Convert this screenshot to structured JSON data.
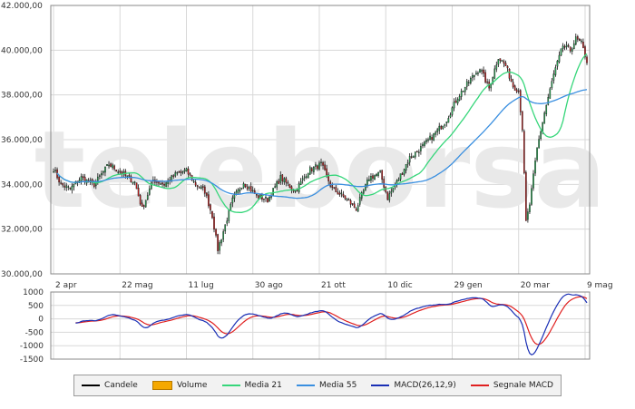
{
  "chart_data": [
    {
      "type": "candlestick",
      "title": "",
      "watermark": "teleborsa",
      "x_tick_labels": [
        "2 apr",
        "22 mag",
        "11 lug",
        "30 ago",
        "21 ott",
        "10 dic",
        "29 gen",
        "20 mar",
        "9 mag"
      ],
      "y_tick_labels": [
        "42.000,00",
        "40.000,00",
        "38.000,00",
        "36.000,00",
        "34.000,00",
        "32.000,00",
        "30.000,00"
      ],
      "ylim": [
        30000,
        42000
      ],
      "grid": true,
      "trading_days": 290,
      "x_tick_day_index": [
        0,
        36,
        72,
        108,
        144,
        180,
        216,
        252,
        288
      ],
      "price_anchors": [
        [
          0,
          34700
        ],
        [
          4,
          34000
        ],
        [
          9,
          33800
        ],
        [
          15,
          34300
        ],
        [
          22,
          34000
        ],
        [
          30,
          34900
        ],
        [
          37,
          34500
        ],
        [
          44,
          34100
        ],
        [
          48,
          32900
        ],
        [
          54,
          34200
        ],
        [
          60,
          34000
        ],
        [
          67,
          34500
        ],
        [
          72,
          34600
        ],
        [
          77,
          34000
        ],
        [
          82,
          33700
        ],
        [
          86,
          32600
        ],
        [
          89,
          31100
        ],
        [
          92,
          31900
        ],
        [
          97,
          33300
        ],
        [
          103,
          34100
        ],
        [
          110,
          33500
        ],
        [
          116,
          33300
        ],
        [
          123,
          34300
        ],
        [
          131,
          33700
        ],
        [
          138,
          34600
        ],
        [
          145,
          34900
        ],
        [
          151,
          33800
        ],
        [
          158,
          33400
        ],
        [
          164,
          32900
        ],
        [
          171,
          34300
        ],
        [
          177,
          34500
        ],
        [
          181,
          33400
        ],
        [
          186,
          34100
        ],
        [
          193,
          35200
        ],
        [
          200,
          35700
        ],
        [
          207,
          36300
        ],
        [
          213,
          36900
        ],
        [
          219,
          37900
        ],
        [
          226,
          38700
        ],
        [
          231,
          39200
        ],
        [
          236,
          38300
        ],
        [
          241,
          39700
        ],
        [
          245,
          39300
        ],
        [
          249,
          38400
        ],
        [
          252,
          38200
        ],
        [
          254,
          36500
        ],
        [
          256,
          32300
        ],
        [
          258,
          33100
        ],
        [
          262,
          35600
        ],
        [
          266,
          37200
        ],
        [
          271,
          38900
        ],
        [
          276,
          40200
        ],
        [
          280,
          40000
        ],
        [
          283,
          40500
        ],
        [
          286,
          40300
        ],
        [
          289,
          39500
        ]
      ],
      "series": [
        {
          "name": "Candele",
          "color": "#000000"
        },
        {
          "name": "Volume",
          "color": "#f5a800"
        },
        {
          "name": "Media 21",
          "color": "#36d67a"
        },
        {
          "name": "Media 55",
          "color": "#3a8fe0"
        }
      ]
    },
    {
      "type": "line",
      "title": "",
      "y_tick_labels": [
        "1000",
        "500",
        "0",
        "-500",
        "-1000",
        "-1500"
      ],
      "ylim": [
        -1500,
        1000
      ],
      "grid": true,
      "series": [
        {
          "name": "MACD(26,12,9)",
          "color": "#1a2fb5"
        },
        {
          "name": "Segnale MACD",
          "color": "#e02020"
        }
      ]
    }
  ],
  "legend": {
    "items": [
      {
        "label": "Candele",
        "color": "#000000",
        "style": "line"
      },
      {
        "label": "Volume",
        "color": "#f5a800",
        "style": "box"
      },
      {
        "label": "Media 21",
        "color": "#36d67a",
        "style": "line"
      },
      {
        "label": "Media 55",
        "color": "#3a8fe0",
        "style": "line"
      },
      {
        "label": "MACD(26,12,9)",
        "color": "#1a2fb5",
        "style": "line"
      },
      {
        "label": "Segnale MACD",
        "color": "#e02020",
        "style": "line"
      }
    ]
  }
}
